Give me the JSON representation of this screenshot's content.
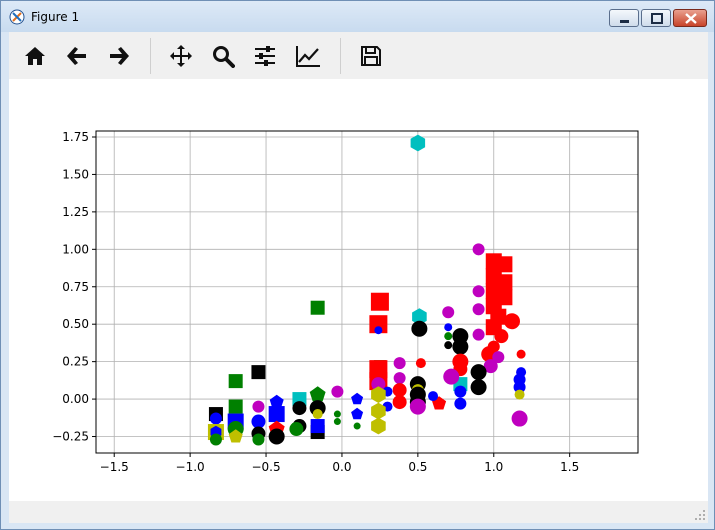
{
  "window": {
    "title": "Figure 1",
    "controls": [
      "minimize",
      "maximize",
      "close"
    ]
  },
  "toolbar": {
    "buttons": [
      {
        "name": "home",
        "icon": "home-icon"
      },
      {
        "name": "back",
        "icon": "arrow-left-icon"
      },
      {
        "name": "forward",
        "icon": "arrow-right-icon"
      },
      {
        "name": "pan",
        "icon": "move-icon"
      },
      {
        "name": "zoom",
        "icon": "magnifier-icon"
      },
      {
        "name": "subplots",
        "icon": "sliders-icon"
      },
      {
        "name": "customize",
        "icon": "line-chart-icon"
      },
      {
        "name": "save",
        "icon": "floppy-disk-icon"
      }
    ]
  },
  "chart_data": {
    "type": "scatter",
    "title": "",
    "xlabel": "",
    "ylabel": "",
    "xlim": [
      -1.62,
      1.95
    ],
    "ylim": [
      -0.36,
      1.79
    ],
    "xticks": [
      "−1.5",
      "−1.0",
      "−0.5",
      "0.0",
      "0.5",
      "1.0",
      "1.5"
    ],
    "xtick_values": [
      -1.5,
      -1.0,
      -0.5,
      0.0,
      0.5,
      1.0,
      1.5
    ],
    "yticks": [
      "−0.25",
      "0.00",
      "0.25",
      "0.50",
      "0.75",
      "1.00",
      "1.25",
      "1.50",
      "1.75"
    ],
    "ytick_values": [
      -0.25,
      0.0,
      0.25,
      0.5,
      0.75,
      1.0,
      1.25,
      1.5,
      1.75
    ],
    "grid": true,
    "legend": "none",
    "colors": {
      "red": "#ff0000",
      "green": "#008000",
      "blue": "#0000ff",
      "black": "#000000",
      "magenta": "#bf00bf",
      "cyan": "#00bfbf",
      "yellow": "#bfbf00"
    },
    "points": [
      {
        "x": 0.5,
        "y": 1.71,
        "c": "cyan",
        "m": "hexagon",
        "s": 16
      },
      {
        "x": 0.9,
        "y": 1.0,
        "c": "magenta",
        "m": "circle",
        "s": 12
      },
      {
        "x": 1.0,
        "y": 0.92,
        "c": "red",
        "m": "square",
        "s": 16
      },
      {
        "x": 1.07,
        "y": 0.9,
        "c": "red",
        "m": "square",
        "s": 16
      },
      {
        "x": 1.0,
        "y": 0.82,
        "c": "red",
        "m": "square",
        "s": 16
      },
      {
        "x": 1.07,
        "y": 0.78,
        "c": "red",
        "m": "square",
        "s": 16
      },
      {
        "x": 1.0,
        "y": 0.72,
        "c": "red",
        "m": "square",
        "s": 16
      },
      {
        "x": 0.9,
        "y": 0.72,
        "c": "magenta",
        "m": "circle",
        "s": 12
      },
      {
        "x": 1.07,
        "y": 0.68,
        "c": "red",
        "m": "square",
        "s": 16
      },
      {
        "x": 1.0,
        "y": 0.62,
        "c": "red",
        "m": "square",
        "s": 16
      },
      {
        "x": 0.9,
        "y": 0.6,
        "c": "magenta",
        "m": "circle",
        "s": 12
      },
      {
        "x": 1.03,
        "y": 0.55,
        "c": "red",
        "m": "square",
        "s": 16
      },
      {
        "x": 1.0,
        "y": 0.48,
        "c": "red",
        "m": "square",
        "s": 16
      },
      {
        "x": 1.12,
        "y": 0.52,
        "c": "red",
        "m": "circle",
        "s": 16
      },
      {
        "x": 1.05,
        "y": 0.42,
        "c": "red",
        "m": "circle",
        "s": 14
      },
      {
        "x": 0.9,
        "y": 0.43,
        "c": "magenta",
        "m": "circle",
        "s": 12
      },
      {
        "x": 1.0,
        "y": 0.35,
        "c": "red",
        "m": "circle",
        "s": 12
      },
      {
        "x": 0.97,
        "y": 0.3,
        "c": "red",
        "m": "circle",
        "s": 16
      },
      {
        "x": 1.03,
        "y": 0.28,
        "c": "magenta",
        "m": "circle",
        "s": 12
      },
      {
        "x": 1.18,
        "y": 0.3,
        "c": "red",
        "m": "circle",
        "s": 9
      },
      {
        "x": 0.98,
        "y": 0.22,
        "c": "magenta",
        "m": "circle",
        "s": 14
      },
      {
        "x": 1.18,
        "y": 0.18,
        "c": "blue",
        "m": "circle",
        "s": 10
      },
      {
        "x": 1.17,
        "y": 0.13,
        "c": "blue",
        "m": "circle",
        "s": 12
      },
      {
        "x": 1.17,
        "y": 0.08,
        "c": "blue",
        "m": "circle",
        "s": 12
      },
      {
        "x": 1.17,
        "y": 0.03,
        "c": "yellow",
        "m": "circle",
        "s": 10
      },
      {
        "x": 1.17,
        "y": -0.13,
        "c": "magenta",
        "m": "circle",
        "s": 16
      },
      {
        "x": 0.25,
        "y": 0.65,
        "c": "red",
        "m": "square",
        "s": 18
      },
      {
        "x": 0.24,
        "y": 0.5,
        "c": "red",
        "m": "square",
        "s": 18
      },
      {
        "x": 0.24,
        "y": 0.46,
        "c": "blue",
        "m": "circle",
        "s": 8
      },
      {
        "x": 0.51,
        "y": 0.55,
        "c": "cyan",
        "m": "hexagon",
        "s": 16
      },
      {
        "x": 0.51,
        "y": 0.47,
        "c": "black",
        "m": "circle",
        "s": 16
      },
      {
        "x": 0.7,
        "y": 0.58,
        "c": "magenta",
        "m": "circle",
        "s": 12
      },
      {
        "x": 0.7,
        "y": 0.48,
        "c": "blue",
        "m": "circle",
        "s": 8
      },
      {
        "x": 0.7,
        "y": 0.42,
        "c": "green",
        "m": "circle",
        "s": 8
      },
      {
        "x": 0.7,
        "y": 0.36,
        "c": "black",
        "m": "circle",
        "s": 8
      },
      {
        "x": 0.78,
        "y": 0.42,
        "c": "black",
        "m": "circle",
        "s": 16
      },
      {
        "x": 0.78,
        "y": 0.35,
        "c": "black",
        "m": "circle",
        "s": 16
      },
      {
        "x": 0.52,
        "y": 0.24,
        "c": "red",
        "m": "circle",
        "s": 10
      },
      {
        "x": 0.38,
        "y": 0.24,
        "c": "magenta",
        "m": "circle",
        "s": 12
      },
      {
        "x": 0.25,
        "y": 0.22,
        "c": "green",
        "m": "square",
        "s": 12
      },
      {
        "x": 0.24,
        "y": 0.2,
        "c": "red",
        "m": "square",
        "s": 18
      },
      {
        "x": 0.24,
        "y": 0.12,
        "c": "red",
        "m": "square",
        "s": 18
      },
      {
        "x": 0.78,
        "y": 0.25,
        "c": "red",
        "m": "circle",
        "s": 16
      },
      {
        "x": 0.78,
        "y": 0.2,
        "c": "red",
        "m": "circle",
        "s": 14
      },
      {
        "x": 0.78,
        "y": 0.1,
        "c": "cyan",
        "m": "square",
        "s": 14
      },
      {
        "x": 0.9,
        "y": 0.18,
        "c": "black",
        "m": "circle",
        "s": 16
      },
      {
        "x": 0.9,
        "y": 0.08,
        "c": "black",
        "m": "circle",
        "s": 16
      },
      {
        "x": 0.72,
        "y": 0.15,
        "c": "magenta",
        "m": "circle",
        "s": 16
      },
      {
        "x": 0.5,
        "y": 0.1,
        "c": "black",
        "m": "circle",
        "s": 16
      },
      {
        "x": 0.5,
        "y": 0.06,
        "c": "yellow",
        "m": "circle",
        "s": 12
      },
      {
        "x": 0.5,
        "y": 0.03,
        "c": "black",
        "m": "circle",
        "s": 16
      },
      {
        "x": 0.5,
        "y": -0.02,
        "c": "black",
        "m": "circle",
        "s": 16
      },
      {
        "x": 0.5,
        "y": -0.05,
        "c": "magenta",
        "m": "circle",
        "s": 16
      },
      {
        "x": 0.38,
        "y": 0.14,
        "c": "magenta",
        "m": "circle",
        "s": 12
      },
      {
        "x": 0.38,
        "y": 0.06,
        "c": "red",
        "m": "circle",
        "s": 14
      },
      {
        "x": 0.38,
        "y": -0.02,
        "c": "red",
        "m": "circle",
        "s": 14
      },
      {
        "x": 0.3,
        "y": 0.05,
        "c": "blue",
        "m": "circle",
        "s": 10
      },
      {
        "x": 0.3,
        "y": -0.05,
        "c": "blue",
        "m": "circle",
        "s": 10
      },
      {
        "x": 0.24,
        "y": 0.1,
        "c": "magenta",
        "m": "circle",
        "s": 14
      },
      {
        "x": 0.24,
        "y": 0.03,
        "c": "yellow",
        "m": "hexagon",
        "s": 16
      },
      {
        "x": 0.24,
        "y": -0.08,
        "c": "yellow",
        "m": "hexagon",
        "s": 16
      },
      {
        "x": 0.24,
        "y": -0.18,
        "c": "yellow",
        "m": "hexagon",
        "s": 16
      },
      {
        "x": 0.64,
        "y": -0.03,
        "c": "red",
        "m": "pentagon",
        "s": 14
      },
      {
        "x": 0.78,
        "y": 0.05,
        "c": "blue",
        "m": "circle",
        "s": 12
      },
      {
        "x": 0.78,
        "y": -0.03,
        "c": "blue",
        "m": "circle",
        "s": 12
      },
      {
        "x": 0.6,
        "y": 0.02,
        "c": "blue",
        "m": "circle",
        "s": 10
      },
      {
        "x": 0.1,
        "y": 0.0,
        "c": "blue",
        "m": "pentagon",
        "s": 12
      },
      {
        "x": 0.1,
        "y": -0.1,
        "c": "blue",
        "m": "pentagon",
        "s": 12
      },
      {
        "x": 0.1,
        "y": -0.18,
        "c": "green",
        "m": "circle",
        "s": 7
      },
      {
        "x": -0.03,
        "y": 0.05,
        "c": "magenta",
        "m": "circle",
        "s": 12
      },
      {
        "x": -0.03,
        "y": -0.1,
        "c": "green",
        "m": "circle",
        "s": 7
      },
      {
        "x": -0.03,
        "y": -0.15,
        "c": "green",
        "m": "circle",
        "s": 7
      },
      {
        "x": -0.16,
        "y": 0.61,
        "c": "green",
        "m": "square",
        "s": 14
      },
      {
        "x": -0.55,
        "y": 0.18,
        "c": "black",
        "m": "square",
        "s": 14
      },
      {
        "x": -0.7,
        "y": 0.12,
        "c": "green",
        "m": "square",
        "s": 14
      },
      {
        "x": -0.7,
        "y": -0.05,
        "c": "green",
        "m": "square",
        "s": 14
      },
      {
        "x": -0.16,
        "y": 0.03,
        "c": "green",
        "m": "pentagon",
        "s": 16
      },
      {
        "x": -0.16,
        "y": -0.06,
        "c": "black",
        "m": "circle",
        "s": 16
      },
      {
        "x": -0.16,
        "y": -0.1,
        "c": "yellow",
        "m": "circle",
        "s": 10
      },
      {
        "x": -0.16,
        "y": -0.22,
        "c": "black",
        "m": "square",
        "s": 14
      },
      {
        "x": -0.16,
        "y": -0.18,
        "c": "blue",
        "m": "square",
        "s": 14
      },
      {
        "x": -0.28,
        "y": 0.0,
        "c": "cyan",
        "m": "square",
        "s": 14
      },
      {
        "x": -0.28,
        "y": -0.06,
        "c": "black",
        "m": "circle",
        "s": 14
      },
      {
        "x": -0.28,
        "y": -0.18,
        "c": "black",
        "m": "circle",
        "s": 14
      },
      {
        "x": -0.3,
        "y": -0.2,
        "c": "green",
        "m": "circle",
        "s": 14
      },
      {
        "x": -0.43,
        "y": -0.02,
        "c": "blue",
        "m": "pentagon",
        "s": 14
      },
      {
        "x": -0.43,
        "y": -0.1,
        "c": "blue",
        "m": "square",
        "s": 16
      },
      {
        "x": -0.43,
        "y": -0.2,
        "c": "red",
        "m": "pentagon",
        "s": 16
      },
      {
        "x": -0.43,
        "y": -0.25,
        "c": "black",
        "m": "circle",
        "s": 16
      },
      {
        "x": -0.55,
        "y": -0.05,
        "c": "magenta",
        "m": "circle",
        "s": 12
      },
      {
        "x": -0.55,
        "y": -0.15,
        "c": "blue",
        "m": "circle",
        "s": 14
      },
      {
        "x": -0.55,
        "y": -0.23,
        "c": "black",
        "m": "circle",
        "s": 14
      },
      {
        "x": -0.55,
        "y": -0.27,
        "c": "green",
        "m": "circle",
        "s": 12
      },
      {
        "x": -0.7,
        "y": -0.15,
        "c": "blue",
        "m": "square",
        "s": 16
      },
      {
        "x": -0.7,
        "y": -0.2,
        "c": "green",
        "m": "circle",
        "s": 16
      },
      {
        "x": -0.7,
        "y": -0.25,
        "c": "yellow",
        "m": "pentagon",
        "s": 14
      },
      {
        "x": -0.83,
        "y": -0.1,
        "c": "black",
        "m": "square",
        "s": 14
      },
      {
        "x": -0.83,
        "y": -0.13,
        "c": "blue",
        "m": "circle",
        "s": 12
      },
      {
        "x": -0.83,
        "y": -0.22,
        "c": "yellow",
        "m": "square",
        "s": 16
      },
      {
        "x": -0.83,
        "y": -0.22,
        "c": "blue",
        "m": "hexagon",
        "s": 12
      },
      {
        "x": -0.83,
        "y": -0.27,
        "c": "green",
        "m": "circle",
        "s": 12
      }
    ]
  }
}
